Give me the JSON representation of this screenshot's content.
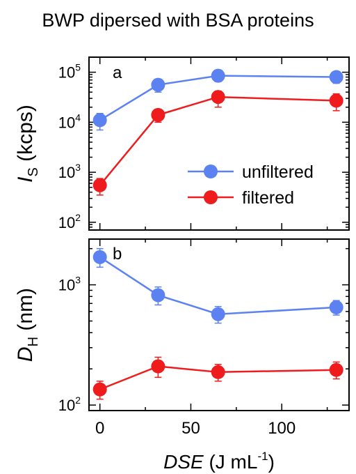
{
  "title": "BWP dipersed with BSA proteins",
  "colors": {
    "unfiltered": "#5b82f0",
    "filtered": "#ee1c1c",
    "axis": "#000000"
  },
  "chart_data": [
    {
      "type": "line",
      "panel_label": "a",
      "ylabel": {
        "main": "I",
        "sub": "S",
        "rest": " (kcps)"
      },
      "yscale": "log",
      "ylim": [
        70,
        200000
      ],
      "xlim": [
        -6,
        137
      ],
      "y_ticks": [
        {
          "value": 100,
          "base": "10",
          "exp": "2"
        },
        {
          "value": 1000,
          "base": "10",
          "exp": "3"
        },
        {
          "value": 10000,
          "base": "10",
          "exp": "4"
        },
        {
          "value": 100000,
          "base": "10",
          "exp": "5"
        }
      ],
      "x": [
        0,
        32,
        65,
        130
      ],
      "series": [
        {
          "name": "unfiltered",
          "color": "#5b82f0",
          "values": [
            11000,
            56000,
            85000,
            80000
          ],
          "err_low": [
            7000,
            40000,
            65000,
            60000
          ],
          "err_high": [
            15000,
            70000,
            100000,
            100000
          ]
        },
        {
          "name": "filtered",
          "color": "#ee1c1c",
          "values": [
            550,
            14000,
            32000,
            27000
          ],
          "err_low": [
            350,
            10000,
            20000,
            17000
          ],
          "err_high": [
            750,
            18000,
            42000,
            37000
          ]
        }
      ],
      "legend": {
        "position": "bottom-right",
        "entries": [
          "unfiltered",
          "filtered"
        ]
      }
    },
    {
      "type": "line",
      "panel_label": "b",
      "ylabel": {
        "main": "D",
        "sub": "H",
        "rest": " (nm)"
      },
      "yscale": "log",
      "ylim": [
        90,
        2400
      ],
      "xlim": [
        -6,
        137
      ],
      "y_ticks": [
        {
          "value": 100,
          "base": "10",
          "exp": "2"
        },
        {
          "value": 1000,
          "base": "10",
          "exp": "3"
        }
      ],
      "x": [
        0,
        32,
        65,
        130
      ],
      "x_ticks": [
        "0",
        "50",
        "100"
      ],
      "x_tick_values": [
        0,
        50,
        100
      ],
      "xlabel": {
        "main": "DSE",
        "rest": " (J mL",
        "exp": "-1",
        "close": ")"
      },
      "series": [
        {
          "name": "unfiltered",
          "color": "#5b82f0",
          "values": [
            1700,
            820,
            570,
            650
          ],
          "err_low": [
            1400,
            680,
            480,
            560
          ],
          "err_high": [
            2000,
            960,
            660,
            740
          ]
        },
        {
          "name": "filtered",
          "color": "#ee1c1c",
          "values": [
            135,
            210,
            188,
            196
          ],
          "err_low": [
            112,
            170,
            158,
            165
          ],
          "err_high": [
            158,
            250,
            218,
            228
          ]
        }
      ]
    }
  ]
}
